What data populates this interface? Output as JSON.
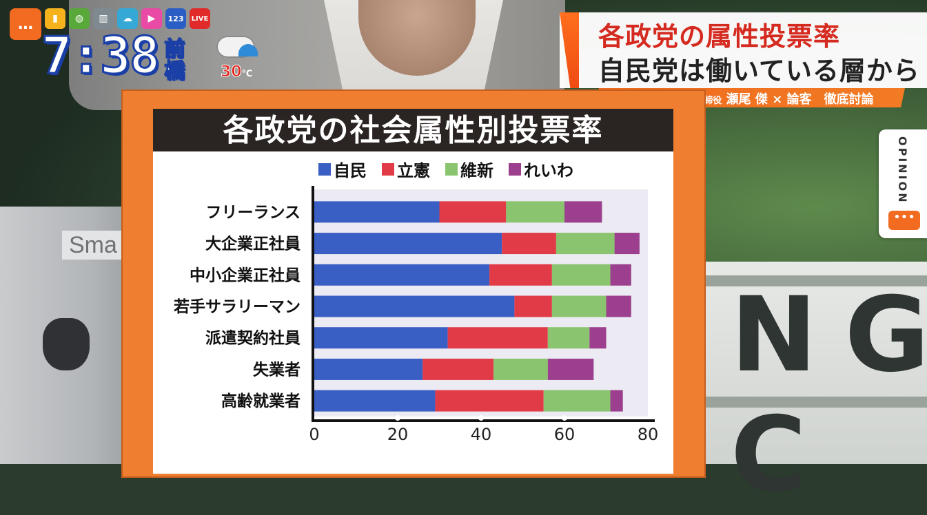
{
  "status_bar": {
    "icons": [
      "chat-icon",
      "bookmark-icon",
      "globe-icon",
      "data-icon",
      "weather-app-icon",
      "play-icon",
      "number-icon",
      "live-icon"
    ],
    "number_icon_text": "123",
    "live_text": "LIVE",
    "time": "7:38",
    "region": "前橋",
    "temperature": "30",
    "temperature_unit": "℃",
    "weather": "cloudy-rain-icon"
  },
  "headline": {
    "line1": "各政党の属性投票率",
    "line2": "自民党は働いている層から支持",
    "sub_role": "スローニュース代表取締役",
    "sub_name": "瀬尾 傑",
    "sub_cross": "×",
    "sub_topic": "論客　徹底討論"
  },
  "opinion_tab": {
    "label": "OPINION",
    "icon": "speech-bubble-icon"
  },
  "background": {
    "laptop_sticker": "Sma",
    "wall_letters": "NG C"
  },
  "colors": {
    "board_orange": "#f07e31",
    "ldp_blue": "#3a5fc4",
    "cdp_red": "#e23b48",
    "ishin_green": "#8bc46e",
    "reiwa_purple": "#9b3f8e",
    "headline_red": "#d52a20"
  },
  "chart_data": {
    "type": "bar",
    "orientation": "horizontal",
    "stacked": true,
    "title": "各政党の社会属性別投票率",
    "categories": [
      "フリーランス",
      "大企業正社員",
      "中小企業正社員",
      "若手サラリーマン",
      "派遣契約社員",
      "失業者",
      "高齢就業者"
    ],
    "series": [
      {
        "name": "自民",
        "color": "#3a5fc4",
        "values": [
          30,
          45,
          42,
          48,
          32,
          26,
          29
        ]
      },
      {
        "name": "立憲",
        "color": "#e23b48",
        "values": [
          16,
          13,
          15,
          9,
          24,
          17,
          26
        ]
      },
      {
        "name": "維新",
        "color": "#8bc46e",
        "values": [
          14,
          14,
          14,
          13,
          10,
          13,
          16
        ]
      },
      {
        "name": "れいわ",
        "color": "#9b3f8e",
        "values": [
          9,
          6,
          5,
          6,
          4,
          11,
          3
        ]
      }
    ],
    "xticks": [
      "0",
      "20",
      "40",
      "60",
      "80"
    ],
    "xlim": [
      0,
      80
    ],
    "legend_position": "top",
    "grid": false
  }
}
